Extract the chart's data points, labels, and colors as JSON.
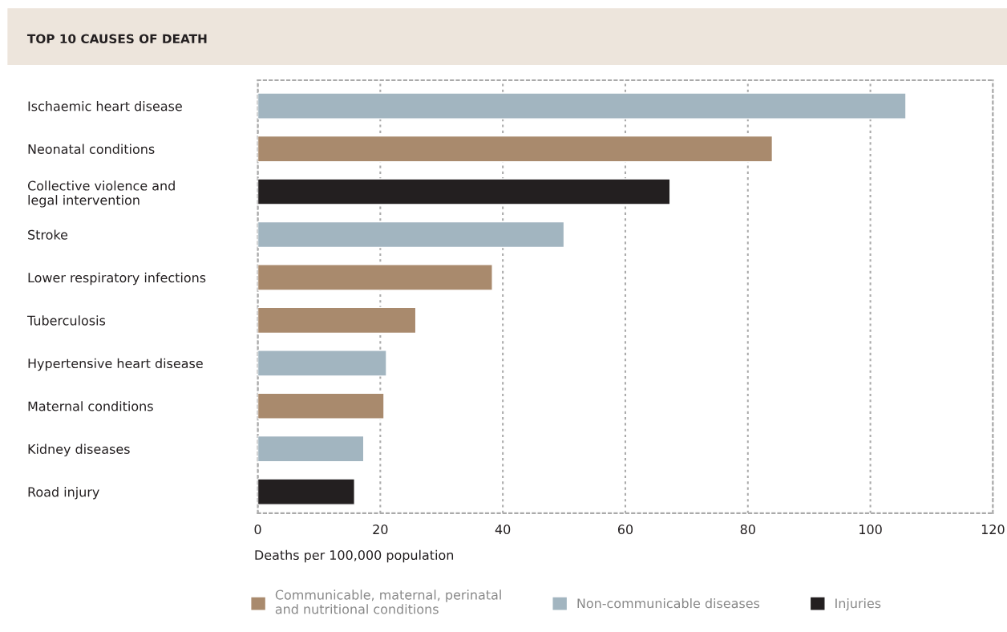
{
  "chart_data": {
    "type": "bar",
    "orientation": "horizontal",
    "title": "TOP 10 CAUSES OF DEATH",
    "xlabel": "Deaths per 100,000 population",
    "categories": [
      "Ischaemic heart disease",
      "Neonatal conditions",
      "Collective violence and\nlegal intervention",
      "Stroke",
      "Lower respiratory infections",
      "Tuberculosis",
      "Hypertensive heart disease",
      "Maternal conditions",
      "Kidney diseases",
      "Road injury"
    ],
    "series": [
      {
        "name": "Communicable, maternal, perinatal\nand nutritional conditions",
        "color": "#a98a6d",
        "values": [
          null,
          84,
          null,
          null,
          38.3,
          25.8,
          null,
          20.6,
          null,
          null
        ]
      },
      {
        "name": "Non-communicable diseases",
        "color": "#a2b5c0",
        "values": [
          105.8,
          null,
          null,
          50,
          null,
          null,
          21,
          null,
          17.3,
          null
        ]
      },
      {
        "name": "Injuries",
        "color": "#231f20",
        "values": [
          null,
          null,
          67.3,
          null,
          null,
          null,
          null,
          null,
          null,
          15.8
        ]
      }
    ],
    "xlim": [
      0,
      120
    ],
    "xticks": [
      0,
      20,
      40,
      60,
      80,
      100,
      120
    ],
    "grid": "x",
    "legend": "bottom"
  }
}
